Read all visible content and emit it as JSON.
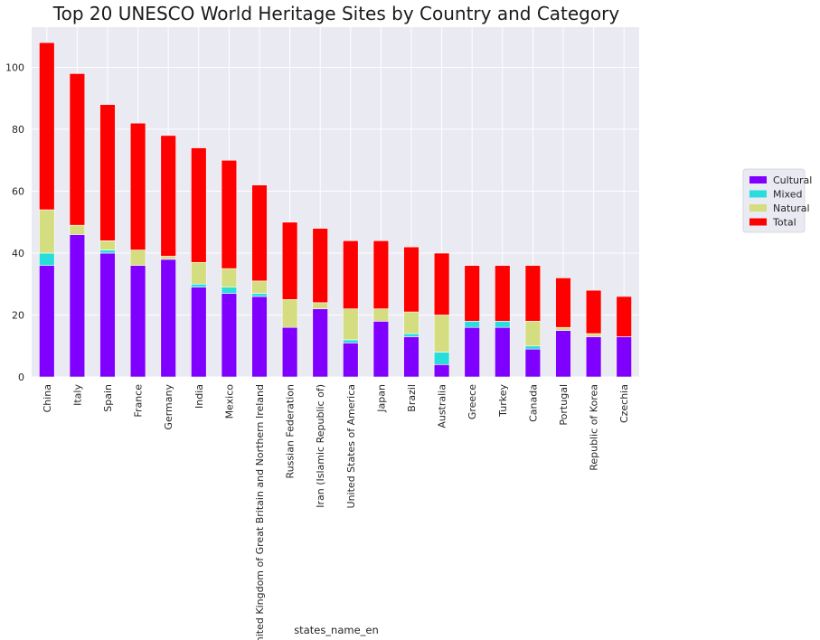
{
  "chart_data": {
    "type": "bar",
    "stacked": true,
    "title": "Top 20 UNESCO World Heritage Sites by Country and Category",
    "xlabel": "states_name_en",
    "ylabel": "",
    "ylim": [
      0,
      113
    ],
    "yticks": [
      0,
      20,
      40,
      60,
      80,
      100
    ],
    "grid": true,
    "legend_position": "right",
    "categories": [
      "China",
      "Italy",
      "Spain",
      "France",
      "Germany",
      "India",
      "Mexico",
      "United Kingdom of Great Britain and Northern Ireland",
      "Russian Federation",
      "Iran (Islamic Republic of)",
      "United States of America",
      "Japan",
      "Brazil",
      "Australia",
      "Greece",
      "Turkey",
      "Canada",
      "Portugal",
      "Republic of Korea",
      "Czechia"
    ],
    "series": [
      {
        "name": "Cultural",
        "color": "#8000ff",
        "values": [
          36,
          46,
          40,
          36,
          38,
          29,
          27,
          26,
          16,
          22,
          11,
          18,
          13,
          4,
          16,
          16,
          9,
          15,
          13,
          13
        ]
      },
      {
        "name": "Mixed",
        "color": "#2adddd",
        "values": [
          4,
          0,
          1,
          0,
          0,
          1,
          2,
          1,
          0,
          0,
          1,
          0,
          1,
          4,
          2,
          2,
          1,
          0,
          0,
          0
        ]
      },
      {
        "name": "Natural",
        "color": "#d4dd80",
        "values": [
          14,
          3,
          3,
          5,
          1,
          7,
          6,
          4,
          9,
          2,
          10,
          4,
          7,
          12,
          0,
          0,
          8,
          1,
          1,
          0
        ]
      },
      {
        "name": "Total",
        "color": "#ff0000",
        "values": [
          54,
          49,
          44,
          41,
          39,
          37,
          35,
          31,
          25,
          24,
          22,
          22,
          21,
          20,
          18,
          18,
          18,
          16,
          14,
          13
        ]
      }
    ]
  }
}
